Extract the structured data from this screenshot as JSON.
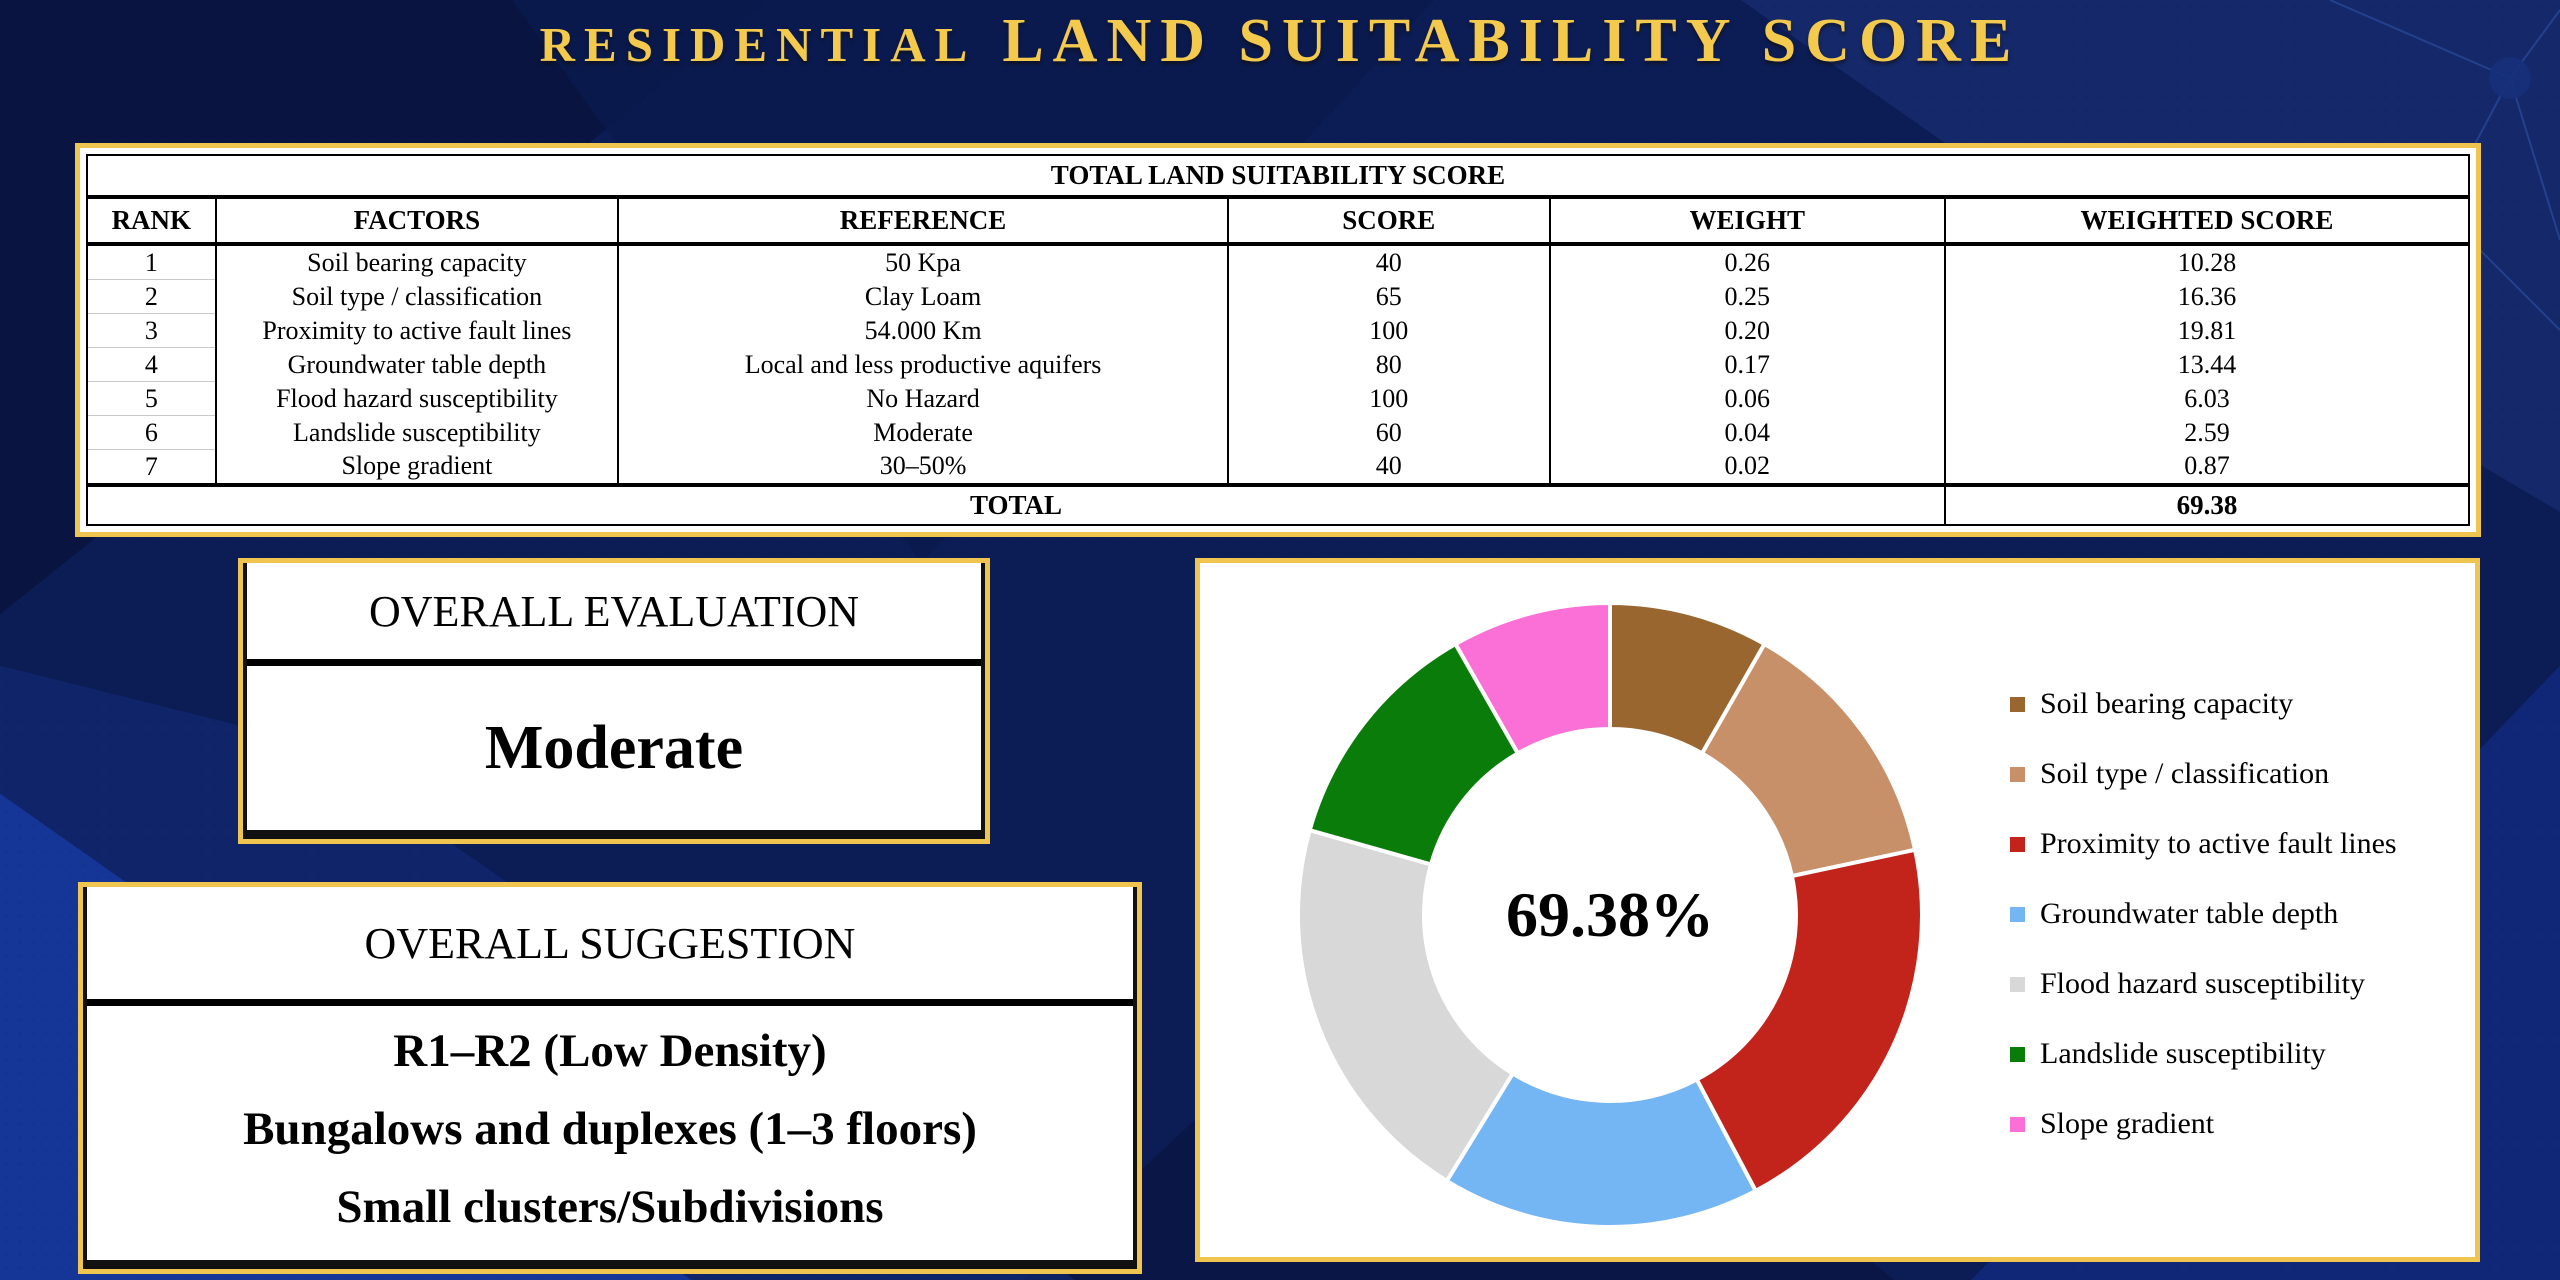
{
  "header": {
    "title_small": "RESIDENTIAL",
    "title_large": "LAND SUITABILITY SCORE"
  },
  "table": {
    "title": "TOTAL LAND SUITABILITY SCORE",
    "headers": [
      "RANK",
      "FACTORS",
      "REFERENCE",
      "SCORE",
      "WEIGHT",
      "WEIGHTED SCORE"
    ],
    "rows": [
      [
        "1",
        "Soil bearing capacity",
        "50 Kpa",
        "40",
        "0.26",
        "10.28"
      ],
      [
        "2",
        "Soil type / classification",
        "Clay Loam",
        "65",
        "0.25",
        "16.36"
      ],
      [
        "3",
        "Proximity to active fault lines",
        "54.000 Km",
        "100",
        "0.20",
        "19.81"
      ],
      [
        "4",
        "Groundwater table depth",
        "Local and less productive aquifers",
        "80",
        "0.17",
        "13.44"
      ],
      [
        "5",
        "Flood hazard susceptibility",
        "No Hazard",
        "100",
        "0.06",
        "6.03"
      ],
      [
        "6",
        "Landslide susceptibility",
        "Moderate",
        "60",
        "0.04",
        "2.59"
      ],
      [
        "7",
        "Slope gradient",
        "30–50%",
        "40",
        "0.02",
        "0.87"
      ]
    ],
    "total_label": "TOTAL",
    "total_value": "69.38"
  },
  "evaluation": {
    "title": "OVERALL EVALUATION",
    "value": "Moderate"
  },
  "suggestion": {
    "title": "OVERALL SUGGESTION",
    "lines": [
      "R1–R2 (Low Density)",
      "Bungalows and duplexes (1–3 floors)",
      "Small clusters/Subdivisions"
    ]
  },
  "chart_data": {
    "type": "pie",
    "style": "donut",
    "title": "",
    "center_label": "69.38%",
    "categories": [
      "Soil bearing capacity",
      "Soil type / classification",
      "Proximity to active fault lines",
      "Groundwater table depth",
      "Flood hazard susceptibility",
      "Landslide susceptibility",
      "Slope gradient"
    ],
    "values": [
      40,
      65,
      100,
      80,
      100,
      60,
      40
    ],
    "colors": [
      "#9A6630",
      "#C79068",
      "#C2231A",
      "#74B5F3",
      "#D8D8D8",
      "#097C09",
      "#FB70D7"
    ],
    "legend_position": "right",
    "start_angle_deg": -90,
    "direction": "clockwise"
  },
  "colors": {
    "background": "#0C1D55",
    "gold_frame": "#EFC44F",
    "title_gold": "#F3C94E",
    "panel": "#FFFFFF",
    "text": "#000000"
  }
}
